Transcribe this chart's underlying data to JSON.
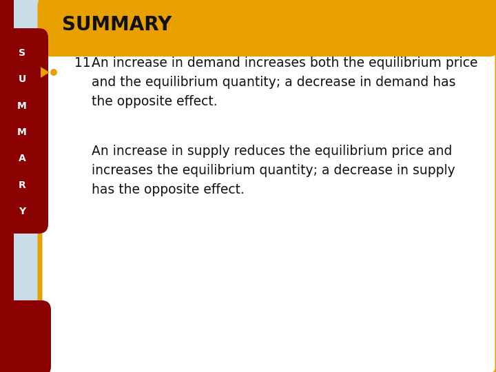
{
  "title": "SUMMARY",
  "title_color": "#111111",
  "title_bg_color": "#E8A000",
  "bg_color": "#C8DDE8",
  "main_bg": "#FFFFFF",
  "sidebar_color": "#8B0000",
  "sidebar_text": [
    "S",
    "U",
    "M",
    "M",
    "A",
    "R",
    "Y"
  ],
  "sidebar_text_color": "#FFFFFF",
  "bullet_arrow_color": "#E8A000",
  "bullet_dot_color": "#E8A000",
  "border_color": "#E8A000",
  "item_number": "11.",
  "paragraph1": "An increase in demand increases both the equilibrium price\nand the equilibrium quantity; a decrease in demand has\nthe opposite effect.",
  "paragraph2": "An increase in supply reduces the equilibrium price and\nincreases the equilibrium quantity; a decrease in supply\nhas the opposite effect.",
  "text_color": "#111111",
  "font_size_title": 20,
  "font_size_body": 13.5
}
